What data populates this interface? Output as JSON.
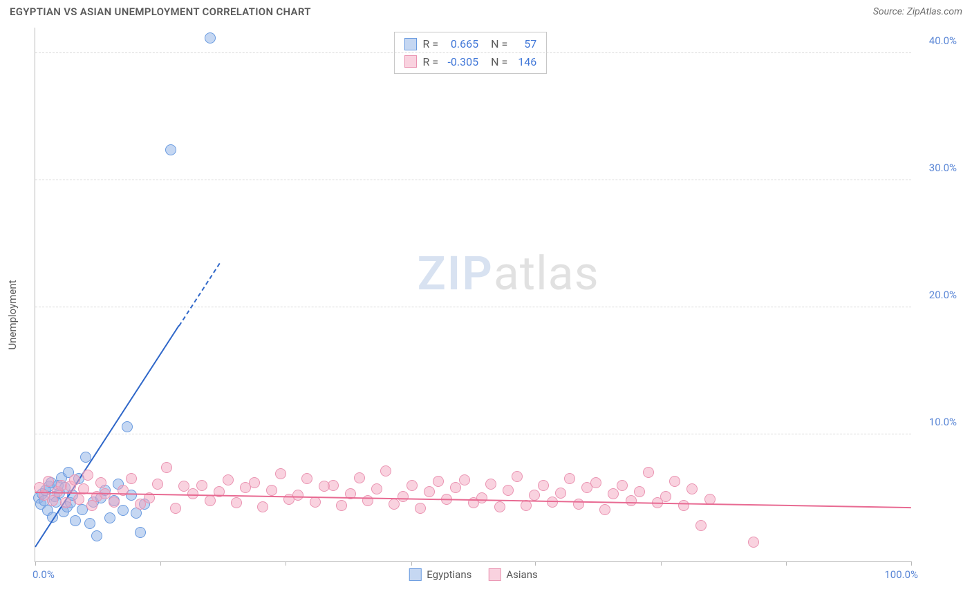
{
  "title": "EGYPTIAN VS ASIAN UNEMPLOYMENT CORRELATION CHART",
  "source": "Source: ZipAtlas.com",
  "ylabel": "Unemployment",
  "watermark": {
    "zip": "ZIP",
    "atlas": "atlas"
  },
  "chart": {
    "type": "scatter",
    "xlim": [
      0,
      100
    ],
    "ylim": [
      0,
      42
    ],
    "xtick_positions": [
      0,
      14.3,
      28.6,
      42.9,
      57.1,
      71.4,
      85.7,
      100
    ],
    "ytick_values": [
      10,
      20,
      30,
      40
    ],
    "ytick_labels": [
      "10.0%",
      "20.0%",
      "30.0%",
      "40.0%"
    ],
    "x_min_label": "0.0%",
    "x_max_label": "100.0%",
    "background_color": "#ffffff",
    "grid_color": "#d8d8d8",
    "axis_color": "#b8b8b8",
    "series": [
      {
        "name": "Egyptians",
        "fill": "rgba(139, 176, 229, 0.5)",
        "stroke": "#6a9be0",
        "trend": {
          "x1": 0,
          "y1": 1.2,
          "x2": 21,
          "y2": 23.5,
          "solid_frac": 0.78,
          "color": "#2f67c9",
          "width": 2.5
        },
        "points": [
          [
            0.4,
            5.0
          ],
          [
            0.6,
            4.5
          ],
          [
            0.8,
            5.3
          ],
          [
            1.0,
            4.8
          ],
          [
            1.2,
            5.6
          ],
          [
            1.4,
            4.0
          ],
          [
            1.6,
            5.9
          ],
          [
            1.8,
            6.2
          ],
          [
            2.0,
            3.5
          ],
          [
            2.2,
            5.1
          ],
          [
            2.4,
            4.7
          ],
          [
            2.6,
            6.0
          ],
          [
            2.8,
            5.4
          ],
          [
            3.0,
            6.6
          ],
          [
            3.2,
            3.9
          ],
          [
            3.4,
            5.8
          ],
          [
            3.6,
            4.3
          ],
          [
            3.8,
            7.0
          ],
          [
            4.0,
            4.6
          ],
          [
            4.3,
            5.2
          ],
          [
            4.6,
            3.2
          ],
          [
            5.0,
            6.5
          ],
          [
            5.4,
            4.1
          ],
          [
            5.8,
            8.2
          ],
          [
            6.2,
            3.0
          ],
          [
            6.6,
            4.7
          ],
          [
            7.0,
            2.0
          ],
          [
            7.5,
            5.0
          ],
          [
            8.0,
            5.6
          ],
          [
            8.5,
            3.4
          ],
          [
            9.0,
            4.8
          ],
          [
            9.5,
            6.1
          ],
          [
            10.0,
            4.0
          ],
          [
            10.5,
            10.6
          ],
          [
            11.0,
            5.2
          ],
          [
            11.5,
            3.8
          ],
          [
            12.0,
            2.3
          ],
          [
            12.5,
            4.5
          ],
          [
            15.5,
            32.4
          ],
          [
            20.0,
            41.2
          ]
        ]
      },
      {
        "name": "Asians",
        "fill": "rgba(244, 166, 192, 0.5)",
        "stroke": "#ea94b2",
        "trend": {
          "x1": 0,
          "y1": 5.5,
          "x2": 100,
          "y2": 4.3,
          "solid_frac": 1.0,
          "color": "#e86a92",
          "width": 2.0
        },
        "points": [
          [
            0.5,
            5.8
          ],
          [
            1.0,
            5.2
          ],
          [
            1.5,
            6.3
          ],
          [
            2.0,
            4.8
          ],
          [
            2.5,
            5.5
          ],
          [
            3.0,
            6.0
          ],
          [
            3.5,
            4.6
          ],
          [
            4.0,
            5.9
          ],
          [
            4.5,
            6.4
          ],
          [
            5.0,
            4.9
          ],
          [
            5.5,
            5.7
          ],
          [
            6.0,
            6.8
          ],
          [
            6.5,
            4.4
          ],
          [
            7.0,
            5.1
          ],
          [
            7.5,
            6.2
          ],
          [
            8.0,
            5.3
          ],
          [
            9.0,
            4.7
          ],
          [
            10.0,
            5.6
          ],
          [
            11.0,
            6.5
          ],
          [
            12.0,
            4.5
          ],
          [
            13.0,
            5.0
          ],
          [
            14.0,
            6.1
          ],
          [
            15.0,
            7.4
          ],
          [
            16.0,
            4.2
          ],
          [
            17.0,
            5.9
          ],
          [
            18.0,
            5.3
          ],
          [
            19.0,
            6.0
          ],
          [
            20.0,
            4.8
          ],
          [
            21.0,
            5.5
          ],
          [
            22.0,
            6.4
          ],
          [
            23.0,
            4.6
          ],
          [
            24.0,
            5.8
          ],
          [
            25.0,
            6.2
          ],
          [
            26.0,
            4.3
          ],
          [
            27.0,
            5.6
          ],
          [
            28.0,
            6.9
          ],
          [
            29.0,
            4.9
          ],
          [
            30.0,
            5.2
          ],
          [
            31.0,
            6.5
          ],
          [
            32.0,
            4.7
          ],
          [
            33.0,
            5.9
          ],
          [
            34.0,
            6.0
          ],
          [
            35.0,
            4.4
          ],
          [
            36.0,
            5.3
          ],
          [
            37.0,
            6.6
          ],
          [
            38.0,
            4.8
          ],
          [
            39.0,
            5.7
          ],
          [
            40.0,
            7.1
          ],
          [
            41.0,
            4.5
          ],
          [
            42.0,
            5.1
          ],
          [
            43.0,
            6.0
          ],
          [
            44.0,
            4.2
          ],
          [
            45.0,
            5.5
          ],
          [
            46.0,
            6.3
          ],
          [
            47.0,
            4.9
          ],
          [
            48.0,
            5.8
          ],
          [
            49.0,
            6.4
          ],
          [
            50.0,
            4.6
          ],
          [
            51.0,
            5.0
          ],
          [
            52.0,
            6.1
          ],
          [
            53.0,
            4.3
          ],
          [
            54.0,
            5.6
          ],
          [
            55.0,
            6.7
          ],
          [
            56.0,
            4.4
          ],
          [
            57.0,
            5.2
          ],
          [
            58.0,
            6.0
          ],
          [
            59.0,
            4.7
          ],
          [
            60.0,
            5.4
          ],
          [
            61.0,
            6.5
          ],
          [
            62.0,
            4.5
          ],
          [
            63.0,
            5.8
          ],
          [
            64.0,
            6.2
          ],
          [
            65.0,
            4.1
          ],
          [
            66.0,
            5.3
          ],
          [
            67.0,
            6.0
          ],
          [
            68.0,
            4.8
          ],
          [
            69.0,
            5.5
          ],
          [
            70.0,
            7.0
          ],
          [
            71.0,
            4.6
          ],
          [
            72.0,
            5.1
          ],
          [
            73.0,
            6.3
          ],
          [
            74.0,
            4.4
          ],
          [
            75.0,
            5.7
          ],
          [
            76.0,
            2.8
          ],
          [
            77.0,
            4.9
          ],
          [
            82.0,
            1.5
          ]
        ]
      }
    ]
  },
  "stats": [
    {
      "r_label": "R =",
      "r_value": "0.665",
      "n_label": "N =",
      "n_value": "57"
    },
    {
      "r_label": "R =",
      "r_value": "-0.305",
      "n_label": "N =",
      "n_value": "146"
    }
  ],
  "bottom_legend": [
    {
      "label": "Egyptians"
    },
    {
      "label": "Asians"
    }
  ]
}
